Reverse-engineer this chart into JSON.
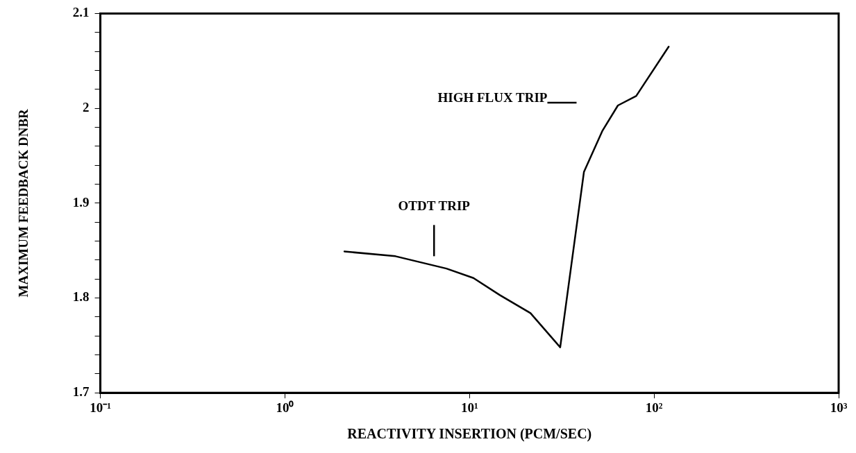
{
  "chart_data": {
    "type": "line",
    "xlabel": "REACTIVITY INSERTION (PCM/SEC)",
    "ylabel": "MAXIMUM FEEDBACK DNBR",
    "log": "x",
    "x": [
      2.1,
      3.97,
      7.5,
      10.5,
      14.6,
      21.4,
      31,
      41.7,
      52.4,
      63.7,
      80,
      120
    ],
    "series": [
      {
        "color": "#000000",
        "values": [
          1.849,
          1.844,
          1.831,
          1.821,
          1.803,
          1.784,
          1.748,
          1.933,
          1.976,
          2.003,
          2.013,
          2.065
        ]
      }
    ],
    "xlim": [
      0.1,
      1000
    ],
    "xticks": [
      {
        "value": 0.1,
        "label": "10⁻¹"
      },
      {
        "value": 1,
        "label": "10⁰"
      },
      {
        "value": 10,
        "label": "10¹"
      },
      {
        "value": 100,
        "label": "10²"
      },
      {
        "value": 1000,
        "label": "10³"
      }
    ],
    "ylim": [
      1.7,
      2.1
    ],
    "yticks": [
      1.7,
      {
        "value": 1.72,
        "label": null
      },
      {
        "value": 1.74,
        "label": null
      },
      {
        "value": 1.76,
        "label": null
      },
      {
        "value": 1.78,
        "label": null
      },
      1.8,
      {
        "value": 1.82,
        "label": null
      },
      {
        "value": 1.84,
        "label": null
      },
      {
        "value": 1.86,
        "label": null
      },
      {
        "value": 1.88,
        "label": null
      },
      1.9,
      {
        "value": 1.92,
        "label": null
      },
      {
        "value": 1.94,
        "label": null
      },
      {
        "value": 1.96,
        "label": null
      },
      {
        "value": 1.98,
        "label": null
      },
      2,
      {
        "value": 2.02,
        "label": null
      },
      {
        "value": 2.04,
        "label": null
      },
      {
        "value": 2.06,
        "label": null
      },
      {
        "value": 2.08,
        "label": null
      },
      2.1
    ],
    "annotations": [
      "OTDT TRIP",
      "HIGH FLUX TRIP"
    ],
    "grid": false,
    "legend": false,
    "marker": "none",
    "line_style": "solid"
  }
}
